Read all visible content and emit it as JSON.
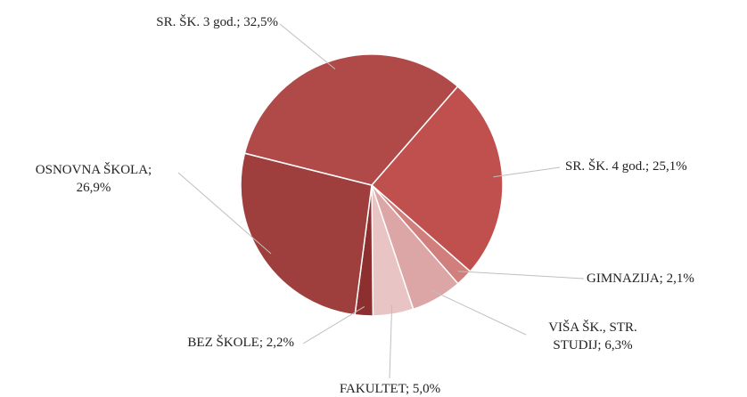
{
  "chart_data": {
    "type": "pie",
    "categories": [
      "SR. ŠK. 4 god.",
      "GIMNAZIJA",
      "VIŠA ŠK., STR. STUDIJ",
      "FAKULTET",
      "BEZ ŠKOLE",
      "OSNOVNA ŠKOLA",
      "SR. ŠK. 3 god."
    ],
    "values": [
      25.1,
      2.1,
      6.3,
      5.0,
      2.2,
      26.9,
      32.5
    ],
    "value_labels": [
      "25,1%",
      "2,1%",
      "6,3%",
      "5,0%",
      "2,2%",
      "26,9%",
      "32,5%"
    ],
    "label_separator": "; ",
    "colors": [
      "#c0504d",
      "#d07f7d",
      "#dba6a5",
      "#e8c5c4",
      "#8c2f2e",
      "#9e3f3d",
      "#b04a48"
    ]
  }
}
